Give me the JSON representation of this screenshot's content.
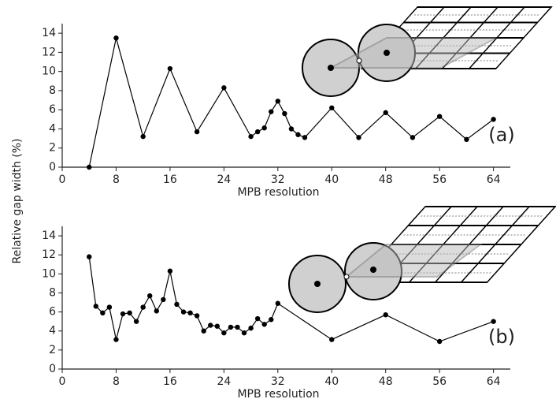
{
  "chart_data": [
    {
      "type": "line",
      "ylabel": "Relative gap width (%)",
      "xlabel": "MPB resolution",
      "annotation": "(a)",
      "x": [
        4,
        8,
        12,
        16,
        20,
        24,
        28,
        29,
        30,
        31,
        32,
        33,
        34,
        35,
        36,
        40,
        44,
        48,
        52,
        56,
        60,
        64
      ],
      "values": [
        0,
        13.5,
        3.2,
        10.3,
        3.7,
        8.3,
        3.2,
        3.7,
        4.1,
        5.8,
        6.9,
        5.6,
        4.0,
        3.4,
        3.1,
        6.2,
        3.1,
        5.7,
        3.1,
        5.3,
        2.9,
        5.0
      ],
      "color": "#000000",
      "xlim": [
        0,
        66.5
      ],
      "ylim": [
        0,
        15
      ],
      "xticks": [
        0,
        8,
        16,
        24,
        32,
        40,
        48,
        56,
        64
      ],
      "yticks": [
        0,
        2,
        4,
        6,
        8,
        10,
        12,
        14
      ]
    },
    {
      "type": "line",
      "xlabel": "MPB resolution",
      "annotation": "(b)",
      "x": [
        4,
        5,
        6,
        7,
        8,
        9,
        10,
        11,
        12,
        13,
        14,
        15,
        16,
        17,
        18,
        19,
        20,
        21,
        22,
        23,
        24,
        25,
        26,
        27,
        28,
        29,
        30,
        31,
        32,
        40,
        48,
        56,
        64
      ],
      "values": [
        11.8,
        6.6,
        5.9,
        6.5,
        3.1,
        5.8,
        5.9,
        5.0,
        6.5,
        7.7,
        6.1,
        7.3,
        10.3,
        6.8,
        6.0,
        5.9,
        5.6,
        4.0,
        4.6,
        4.5,
        3.8,
        4.4,
        4.4,
        3.8,
        4.3,
        5.3,
        4.7,
        5.2,
        6.9,
        3.1,
        5.7,
        2.9,
        5.0
      ],
      "color": "#000000",
      "xlim": [
        0,
        66.5
      ],
      "ylim": [
        0,
        15
      ],
      "xticks": [
        0,
        8,
        16,
        24,
        32,
        40,
        48,
        56,
        64
      ],
      "yticks": [
        0,
        2,
        4,
        6,
        8,
        10,
        12,
        14
      ]
    }
  ]
}
